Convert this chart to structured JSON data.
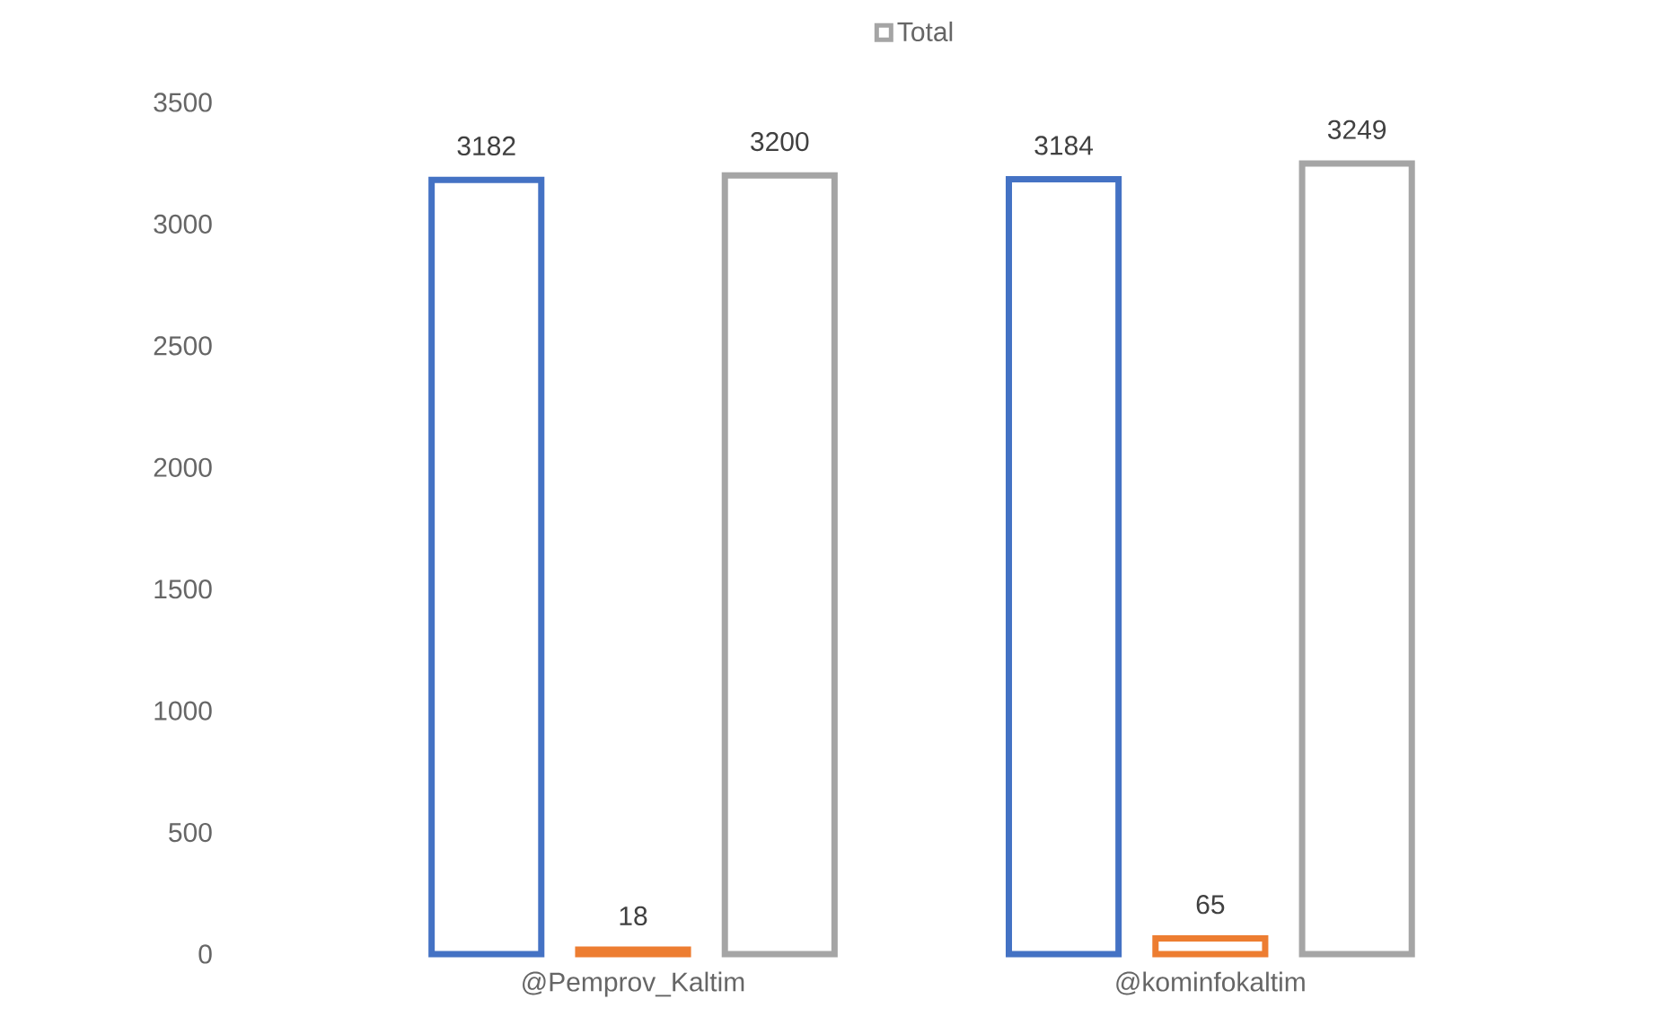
{
  "chart_data": {
    "type": "bar",
    "categories": [
      "@Pemprov_Kaltim",
      "@kominfokaltim"
    ],
    "series": [
      {
        "color": "#4472c4",
        "values": [
          3182,
          3184
        ]
      },
      {
        "color": "#ed7d31",
        "values": [
          18,
          65
        ]
      },
      {
        "name": "Total",
        "color": "#a5a5a5",
        "values": [
          3200,
          3249
        ]
      }
    ],
    "ylim": [
      0,
      3500
    ],
    "yticks": [
      0,
      500,
      1000,
      1500,
      2000,
      2500,
      3000,
      3500
    ],
    "data_labels": true,
    "legend": "top",
    "grid": false
  }
}
